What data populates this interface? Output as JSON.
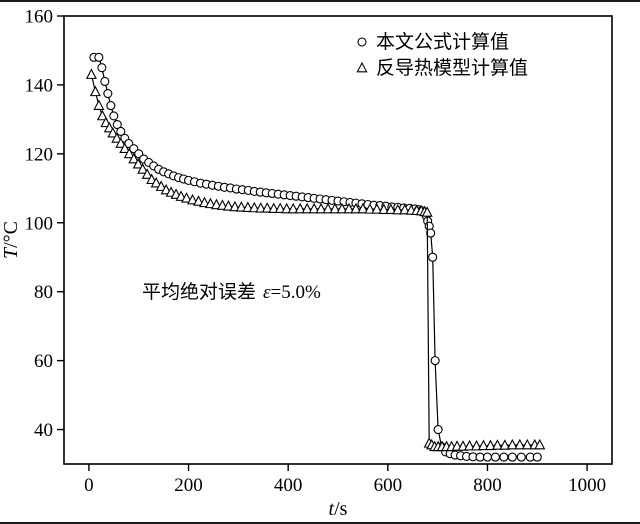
{
  "figure": {
    "ylabel_italic": "T",
    "ylabel_rest": "/°C",
    "xlabel_italic": "t",
    "xlabel_rest": "/s",
    "annotation_prefix": "平均绝对误差",
    "annotation_epsilon": "ε",
    "annotation_suffix": "=5.0%",
    "legend": [
      {
        "marker": "circle",
        "label": "本文公式计算值"
      },
      {
        "marker": "triangle",
        "label": "反导热模型计算值"
      }
    ],
    "ink_color": "#000000",
    "background_color": "#ffffff"
  },
  "chart_data": {
    "type": "line",
    "title": "",
    "xlabel": "t/s",
    "ylabel": "T/°C",
    "xlim": [
      -50,
      1050
    ],
    "ylim": [
      30,
      160
    ],
    "xticks": [
      0,
      200,
      400,
      600,
      800,
      1000
    ],
    "yticks": [
      40,
      60,
      80,
      100,
      120,
      140,
      160
    ],
    "grid": false,
    "legend_position": "upper right inside",
    "annotation": "平均绝对误差 ε=5.0%",
    "series": [
      {
        "name": "本文公式计算值",
        "marker": "circle",
        "x": [
          10,
          20,
          26,
          32,
          38,
          44,
          50,
          57,
          64,
          72,
          80,
          90,
          100,
          110,
          120,
          130,
          140,
          150,
          160,
          170,
          180,
          190,
          200,
          212,
          224,
          236,
          248,
          260,
          272,
          284,
          296,
          308,
          320,
          332,
          344,
          356,
          368,
          380,
          392,
          404,
          416,
          428,
          440,
          452,
          464,
          476,
          488,
          500,
          512,
          524,
          536,
          548,
          560,
          572,
          584,
          596,
          608,
          620,
          632,
          644,
          654,
          662,
          668,
          673,
          677,
          680,
          683,
          686,
          690,
          695,
          701,
          708,
          716,
          725,
          735,
          746,
          758,
          771,
          785,
          800,
          816,
          833,
          850,
          868,
          886,
          900
        ],
        "y": [
          148,
          148,
          145,
          141,
          137.5,
          134,
          131,
          128.5,
          126.5,
          124.5,
          123,
          121.5,
          120,
          118.5,
          117.5,
          116.5,
          115.5,
          114.8,
          114.2,
          113.6,
          113.1,
          112.7,
          112.3,
          111.9,
          111.5,
          111.2,
          110.9,
          110.6,
          110.3,
          110.1,
          109.8,
          109.6,
          109.4,
          109.1,
          108.9,
          108.7,
          108.5,
          108.3,
          108.1,
          107.9,
          107.7,
          107.5,
          107.3,
          107.1,
          106.9,
          106.7,
          106.5,
          106.3,
          106.1,
          105.9,
          105.7,
          105.5,
          105.3,
          105.1,
          105,
          104.8,
          104.6,
          104.5,
          104.3,
          104.2,
          104,
          103.8,
          103.5,
          103,
          102,
          100.5,
          99,
          97,
          90,
          60,
          40,
          35,
          33.5,
          33,
          32.6,
          32.4,
          32.2,
          32.1,
          32,
          32,
          32,
          32,
          32,
          32,
          32,
          32
        ]
      },
      {
        "name": "反导热模型计算值",
        "marker": "triangle",
        "x": [
          5,
          13,
          20,
          27,
          34,
          41,
          48,
          56,
          64,
          72,
          81,
          90,
          99,
          108,
          117,
          126,
          135,
          145,
          155,
          165,
          175,
          185,
          196,
          208,
          220,
          232,
          244,
          256,
          268,
          280,
          293,
          306,
          319,
          332,
          345,
          358,
          371,
          384,
          397,
          410,
          424,
          438,
          452,
          466,
          480,
          494,
          508,
          522,
          536,
          550,
          564,
          578,
          592,
          606,
          620,
          634,
          647,
          658,
          667,
          674,
          679,
          683,
          688,
          694,
          701,
          709,
          718,
          728,
          739,
          751,
          764,
          778,
          792,
          806,
          820,
          835,
          850,
          865,
          880,
          895,
          905
        ],
        "y": [
          143,
          138,
          134,
          131,
          129,
          127.5,
          126,
          124.5,
          123,
          121.5,
          120,
          118.5,
          117,
          115.5,
          114,
          112.5,
          111.5,
          110.5,
          109.5,
          108.8,
          108.2,
          107.6,
          107.1,
          106.6,
          106.2,
          105.8,
          105.5,
          105.2,
          105,
          104.8,
          104.6,
          104.5,
          104.4,
          104.3,
          104.2,
          104.2,
          104.1,
          104.1,
          104,
          104,
          104,
          104,
          104,
          104,
          104,
          104,
          104,
          104,
          104,
          104,
          103.9,
          103.9,
          103.8,
          103.8,
          103.7,
          103.7,
          103.6,
          103.5,
          103.4,
          103.2,
          103,
          36,
          35.5,
          35,
          35,
          35,
          35,
          35,
          35.1,
          35.1,
          35.2,
          35.2,
          35.3,
          35.3,
          35.4,
          35.4,
          35.5,
          35.5,
          35.5,
          35.5,
          35.5
        ]
      }
    ]
  }
}
